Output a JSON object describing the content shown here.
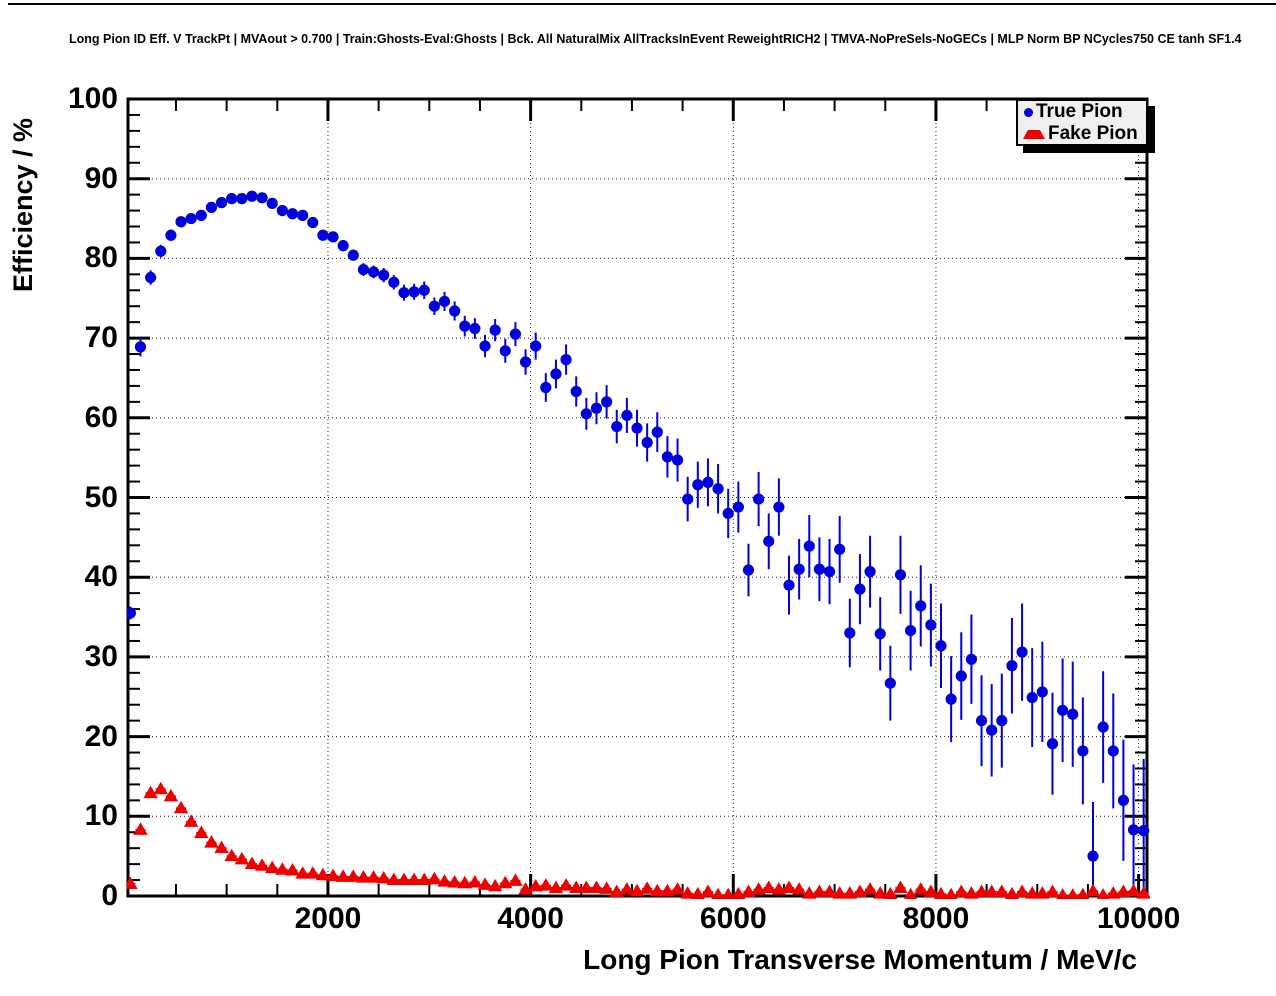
{
  "page": {
    "header_title": "Long Pion ID Eff. V TrackPt | MVAout > 0.700 | Train:Ghosts-Eval:Ghosts | Bck. All NaturalMix AllTracksInEvent ReweightRICH2 | TMVA-NoPreSels-NoGECs | MLP Norm BP NCycles750 CE tanh SF1.4"
  },
  "legend": {
    "items": [
      {
        "label": "True Pion",
        "marker": "circle",
        "color": "#0000dd"
      },
      {
        "label": "Fake Pion",
        "marker": "triangle",
        "color": "#ee0000"
      }
    ]
  },
  "colors": {
    "true_pion": "#0000dd",
    "fake_pion": "#ee0000",
    "frame": "#000000",
    "grid": "#222222",
    "legend_fill": "#f0f0f0",
    "legend_shadow": "#000000"
  },
  "chart_data": {
    "type": "scatter",
    "title": "Long Pion ID Eff. V TrackPt | MVAout > 0.700 | Train:Ghosts-Eval:Ghosts | Bck. All NaturalMix AllTracksInEvent ReweightRICH2 | TMVA-NoPreSels-NoGECs | MLP Norm BP NCycles750 CE tanh SF1.4",
    "xlabel": "Long Pion Transverse Momentum / MeV/c",
    "ylabel": "Efficiency / %",
    "xlim": [
      0,
      10080
    ],
    "ylim": [
      0,
      100
    ],
    "bin_width": 100,
    "grid": "dotted",
    "legend_position": "top-right",
    "x_major_ticks": [
      2000,
      4000,
      6000,
      8000,
      10000
    ],
    "x_tick_labels": [
      "2000",
      "4000",
      "6000",
      "8000",
      "10000"
    ],
    "x_minor_step": 500,
    "y_major_ticks": [
      0,
      10,
      20,
      30,
      40,
      50,
      60,
      70,
      80,
      90,
      100
    ],
    "y_tick_labels": [
      "0",
      "10",
      "20",
      "30",
      "40",
      "50",
      "60",
      "70",
      "80",
      "90",
      "100"
    ],
    "y_minor_step": 2,
    "series": [
      {
        "name": "True Pion",
        "marker": "circle",
        "color": "#0000dd",
        "points": [
          [
            50,
            35.5,
            0.8
          ],
          [
            150,
            68.9,
            1.2
          ],
          [
            250,
            77.6,
            0.9
          ],
          [
            350,
            80.9,
            0.8
          ],
          [
            450,
            82.9,
            0.7
          ],
          [
            550,
            84.6,
            0.6
          ],
          [
            650,
            85.0,
            0.6
          ],
          [
            750,
            85.4,
            0.5
          ],
          [
            850,
            86.4,
            0.5
          ],
          [
            950,
            87.0,
            0.5
          ],
          [
            1050,
            87.5,
            0.4
          ],
          [
            1150,
            87.5,
            0.4
          ],
          [
            1250,
            87.8,
            0.4
          ],
          [
            1350,
            87.6,
            0.4
          ],
          [
            1450,
            86.9,
            0.5
          ],
          [
            1550,
            86.0,
            0.5
          ],
          [
            1650,
            85.6,
            0.5
          ],
          [
            1750,
            85.4,
            0.5
          ],
          [
            1850,
            84.5,
            0.6
          ],
          [
            1950,
            82.9,
            0.6
          ],
          [
            2050,
            82.7,
            0.6
          ],
          [
            2150,
            81.6,
            0.7
          ],
          [
            2250,
            80.4,
            0.7
          ],
          [
            2350,
            78.6,
            0.8
          ],
          [
            2450,
            78.3,
            0.8
          ],
          [
            2550,
            77.9,
            0.9
          ],
          [
            2650,
            77.0,
            0.9
          ],
          [
            2750,
            75.7,
            1.0
          ],
          [
            2850,
            75.8,
            1.0
          ],
          [
            2950,
            76.0,
            1.1
          ],
          [
            3050,
            74.0,
            1.1
          ],
          [
            3150,
            74.6,
            1.2
          ],
          [
            3250,
            73.4,
            1.2
          ],
          [
            3350,
            71.5,
            1.3
          ],
          [
            3450,
            71.2,
            1.3
          ],
          [
            3550,
            69.0,
            1.4
          ],
          [
            3650,
            71.0,
            1.4
          ],
          [
            3750,
            68.4,
            1.5
          ],
          [
            3850,
            70.5,
            1.5
          ],
          [
            3950,
            67.0,
            1.6
          ],
          [
            4050,
            69.0,
            1.7
          ],
          [
            4150,
            63.8,
            1.8
          ],
          [
            4250,
            65.5,
            1.8
          ],
          [
            4350,
            67.3,
            1.9
          ],
          [
            4450,
            63.3,
            1.9
          ],
          [
            4550,
            60.5,
            2.0
          ],
          [
            4650,
            61.2,
            2.0
          ],
          [
            4750,
            62.0,
            2.1
          ],
          [
            4850,
            58.9,
            2.1
          ],
          [
            4950,
            60.3,
            2.2
          ],
          [
            5050,
            58.7,
            2.3
          ],
          [
            5150,
            56.9,
            2.4
          ],
          [
            5250,
            58.2,
            2.5
          ],
          [
            5350,
            55.1,
            2.6
          ],
          [
            5450,
            54.7,
            2.7
          ],
          [
            5550,
            49.8,
            2.8
          ],
          [
            5650,
            51.6,
            2.9
          ],
          [
            5750,
            51.9,
            3.0
          ],
          [
            5850,
            51.1,
            3.1
          ],
          [
            5950,
            48.0,
            3.1
          ],
          [
            6050,
            48.8,
            3.2
          ],
          [
            6150,
            40.9,
            3.3
          ],
          [
            6250,
            49.8,
            3.4
          ],
          [
            6350,
            44.5,
            3.5
          ],
          [
            6450,
            48.8,
            3.6
          ],
          [
            6550,
            39.0,
            3.7
          ],
          [
            6650,
            41.0,
            3.8
          ],
          [
            6750,
            43.9,
            3.9
          ],
          [
            6850,
            41.0,
            4.0
          ],
          [
            6950,
            40.7,
            4.1
          ],
          [
            7050,
            43.5,
            4.2
          ],
          [
            7150,
            33.0,
            4.3
          ],
          [
            7250,
            38.5,
            4.4
          ],
          [
            7350,
            40.7,
            4.5
          ],
          [
            7450,
            32.9,
            4.6
          ],
          [
            7550,
            26.7,
            4.7
          ],
          [
            7650,
            40.3,
            4.9
          ],
          [
            7750,
            33.3,
            5.0
          ],
          [
            7850,
            36.4,
            5.1
          ],
          [
            7950,
            34.0,
            5.2
          ],
          [
            8050,
            31.4,
            5.3
          ],
          [
            8150,
            24.7,
            5.4
          ],
          [
            8250,
            27.6,
            5.5
          ],
          [
            8350,
            29.7,
            5.6
          ],
          [
            8450,
            22.0,
            5.7
          ],
          [
            8550,
            20.8,
            5.8
          ],
          [
            8650,
            22.0,
            5.9
          ],
          [
            8750,
            28.9,
            6.0
          ],
          [
            8850,
            30.6,
            6.1
          ],
          [
            8950,
            24.9,
            6.2
          ],
          [
            9050,
            25.6,
            6.3
          ],
          [
            9150,
            19.1,
            6.4
          ],
          [
            9250,
            23.3,
            6.5
          ],
          [
            9350,
            22.8,
            6.6
          ],
          [
            9450,
            18.2,
            6.7
          ],
          [
            9550,
            5.0,
            6.8
          ],
          [
            9650,
            21.2,
            7.0
          ],
          [
            9750,
            18.2,
            7.2
          ],
          [
            9850,
            12.0,
            7.6
          ],
          [
            9950,
            8.3,
            8.2
          ],
          [
            10050,
            8.2,
            9.0
          ]
        ]
      },
      {
        "name": "Fake Pion",
        "marker": "triangle",
        "color": "#ee0000",
        "points": [
          [
            50,
            1.5,
            0.3
          ],
          [
            150,
            8.3,
            0.5
          ],
          [
            250,
            12.9,
            0.5
          ],
          [
            350,
            13.4,
            0.5
          ],
          [
            450,
            12.5,
            0.5
          ],
          [
            550,
            11.0,
            0.4
          ],
          [
            650,
            9.3,
            0.4
          ],
          [
            750,
            7.9,
            0.4
          ],
          [
            850,
            6.7,
            0.3
          ],
          [
            950,
            6.0,
            0.3
          ],
          [
            1050,
            5.0,
            0.3
          ],
          [
            1150,
            4.6,
            0.3
          ],
          [
            1250,
            4.0,
            0.2
          ],
          [
            1350,
            3.8,
            0.2
          ],
          [
            1450,
            3.5,
            0.2
          ],
          [
            1550,
            3.3,
            0.2
          ],
          [
            1650,
            3.2,
            0.2
          ],
          [
            1750,
            2.8,
            0.2
          ],
          [
            1850,
            2.8,
            0.2
          ],
          [
            1950,
            2.6,
            0.2
          ],
          [
            2050,
            2.5,
            0.2
          ],
          [
            2150,
            2.4,
            0.2
          ],
          [
            2250,
            2.4,
            0.2
          ],
          [
            2350,
            2.3,
            0.2
          ],
          [
            2450,
            2.3,
            0.2
          ],
          [
            2550,
            2.2,
            0.2
          ],
          [
            2650,
            2.0,
            0.2
          ],
          [
            2750,
            2.0,
            0.2
          ],
          [
            2850,
            2.0,
            0.2
          ],
          [
            2950,
            2.0,
            0.2
          ],
          [
            3050,
            2.1,
            0.2
          ],
          [
            3150,
            1.8,
            0.2
          ],
          [
            3250,
            1.7,
            0.2
          ],
          [
            3350,
            1.6,
            0.2
          ],
          [
            3450,
            1.7,
            0.2
          ],
          [
            3550,
            1.4,
            0.2
          ],
          [
            3650,
            1.2,
            0.2
          ],
          [
            3750,
            1.6,
            0.2
          ],
          [
            3850,
            1.9,
            0.2
          ],
          [
            3950,
            0.8,
            0.2
          ],
          [
            4050,
            1.2,
            0.2
          ],
          [
            4150,
            1.3,
            0.2
          ],
          [
            4250,
            1.0,
            0.2
          ],
          [
            4350,
            1.3,
            0.2
          ],
          [
            4450,
            1.0,
            0.2
          ],
          [
            4550,
            1.0,
            0.2
          ],
          [
            4650,
            1.0,
            0.2
          ],
          [
            4750,
            0.9,
            0.2
          ],
          [
            4850,
            0.5,
            0.1
          ],
          [
            4950,
            0.8,
            0.1
          ],
          [
            5050,
            0.6,
            0.1
          ],
          [
            5150,
            0.9,
            0.1
          ],
          [
            5250,
            0.6,
            0.1
          ],
          [
            5350,
            0.6,
            0.1
          ],
          [
            5450,
            0.8,
            0.1
          ],
          [
            5550,
            0.3,
            0.1
          ],
          [
            5650,
            0.2,
            0.1
          ],
          [
            5750,
            0.5,
            0.1
          ],
          [
            5850,
            0.1,
            0.1
          ],
          [
            5950,
            0.1,
            0.1
          ],
          [
            6050,
            0.2,
            0.1
          ],
          [
            6150,
            0.5,
            0.1
          ],
          [
            6250,
            0.8,
            0.1
          ],
          [
            6350,
            1.0,
            0.2
          ],
          [
            6450,
            0.8,
            0.2
          ],
          [
            6550,
            1.0,
            0.2
          ],
          [
            6650,
            0.8,
            0.2
          ],
          [
            6750,
            0.3,
            0.1
          ],
          [
            6850,
            0.5,
            0.1
          ],
          [
            6950,
            0.5,
            0.1
          ],
          [
            7050,
            0.3,
            0.1
          ],
          [
            7150,
            0.3,
            0.1
          ],
          [
            7250,
            0.5,
            0.1
          ],
          [
            7350,
            0.8,
            0.2
          ],
          [
            7450,
            0.3,
            0.1
          ],
          [
            7550,
            0.2,
            0.1
          ],
          [
            7650,
            1.0,
            0.3
          ],
          [
            7750,
            0.1,
            0.1
          ],
          [
            7850,
            0.8,
            0.2
          ],
          [
            7950,
            0.5,
            0.2
          ],
          [
            8050,
            0.2,
            0.1
          ],
          [
            8150,
            0.1,
            0.1
          ],
          [
            8250,
            0.5,
            0.2
          ],
          [
            8350,
            0.3,
            0.1
          ],
          [
            8450,
            0.5,
            0.2
          ],
          [
            8550,
            0.5,
            0.2
          ],
          [
            8650,
            0.5,
            0.2
          ],
          [
            8750,
            0.2,
            0.1
          ],
          [
            8850,
            0.5,
            0.2
          ],
          [
            8950,
            0.3,
            0.1
          ],
          [
            9050,
            0.3,
            0.1
          ],
          [
            9150,
            0.5,
            0.2
          ],
          [
            9250,
            0.05,
            0.05
          ],
          [
            9350,
            0.05,
            0.05
          ],
          [
            9450,
            0.1,
            0.1
          ],
          [
            9550,
            0.6,
            0.3
          ],
          [
            9650,
            0.05,
            0.05
          ],
          [
            9750,
            0.3,
            0.2
          ],
          [
            9850,
            0.5,
            0.3
          ],
          [
            9950,
            0.6,
            0.3
          ],
          [
            10050,
            0.3,
            0.2
          ]
        ]
      }
    ]
  }
}
